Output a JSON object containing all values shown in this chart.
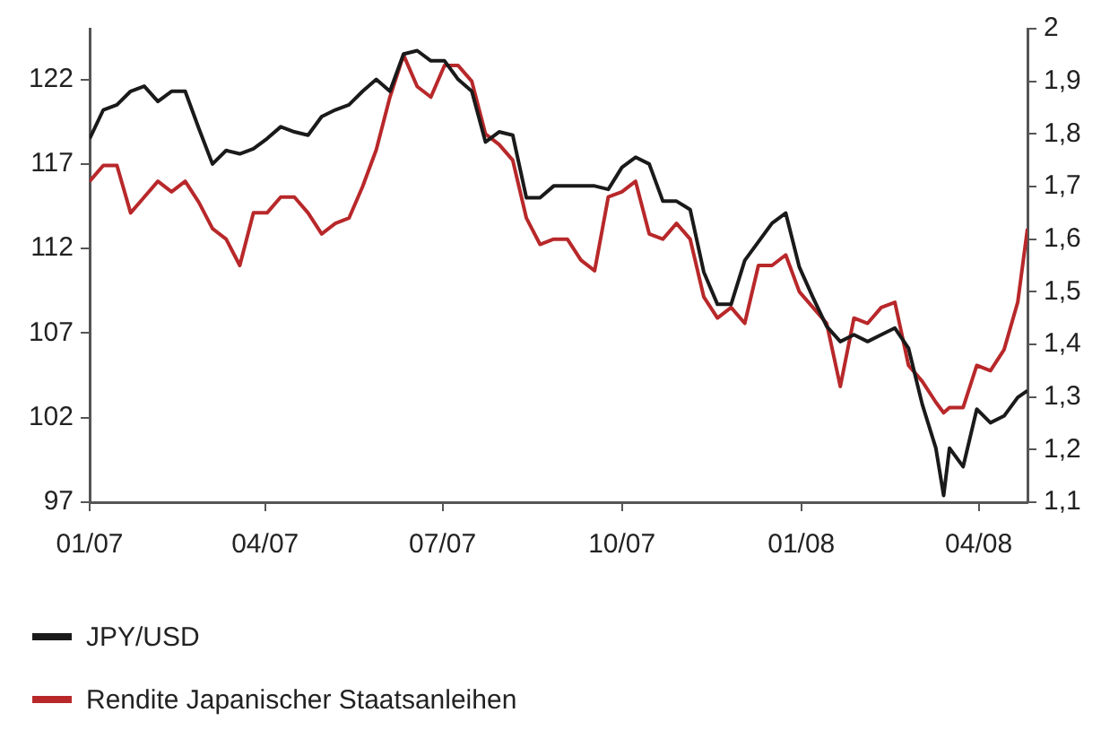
{
  "chart_data": {
    "type": "line",
    "legend": "bottom",
    "grid": false,
    "x": [
      "2007-01-01",
      "2007-01-08",
      "2007-01-15",
      "2007-01-22",
      "2007-01-29",
      "2007-02-05",
      "2007-02-12",
      "2007-02-19",
      "2007-02-26",
      "2007-03-05",
      "2007-03-12",
      "2007-03-19",
      "2007-03-26",
      "2007-04-02",
      "2007-04-09",
      "2007-04-16",
      "2007-04-23",
      "2007-04-30",
      "2007-05-07",
      "2007-05-14",
      "2007-05-21",
      "2007-05-28",
      "2007-06-04",
      "2007-06-11",
      "2007-06-18",
      "2007-06-25",
      "2007-07-02",
      "2007-07-09",
      "2007-07-16",
      "2007-07-23",
      "2007-07-30",
      "2007-08-06",
      "2007-08-13",
      "2007-08-20",
      "2007-08-27",
      "2007-09-03",
      "2007-09-10",
      "2007-09-17",
      "2007-09-24",
      "2007-10-01",
      "2007-10-08",
      "2007-10-15",
      "2007-10-22",
      "2007-10-29",
      "2007-11-05",
      "2007-11-12",
      "2007-11-19",
      "2007-11-26",
      "2007-12-03",
      "2007-12-10",
      "2007-12-17",
      "2007-12-24",
      "2007-12-31",
      "2008-01-07",
      "2008-01-14",
      "2008-01-21",
      "2008-01-28",
      "2008-02-04",
      "2008-02-11",
      "2008-02-18",
      "2008-02-25",
      "2008-03-03",
      "2008-03-10",
      "2008-03-14",
      "2008-03-17",
      "2008-03-24",
      "2008-03-31",
      "2008-04-07",
      "2008-04-14",
      "2008-04-21",
      "2008-04-26"
    ],
    "series": [
      {
        "name": "JPY/USD",
        "color": "#1a1a1a",
        "values": [
          118.5,
          120.2,
          120.5,
          121.3,
          121.6,
          120.7,
          121.3,
          121.3,
          119.1,
          117.0,
          117.8,
          117.6,
          117.9,
          118.5,
          119.2,
          118.9,
          118.7,
          119.8,
          120.2,
          120.5,
          121.3,
          122.0,
          121.3,
          123.5,
          123.7,
          123.1,
          123.1,
          122.0,
          121.3,
          118.3,
          118.9,
          118.7,
          115.0,
          115.0,
          115.7,
          115.7,
          115.7,
          115.7,
          115.5,
          116.8,
          117.4,
          117.0,
          114.8,
          114.8,
          114.3,
          110.6,
          108.7,
          108.7,
          111.3,
          112.4,
          113.5,
          114.1,
          110.9,
          109.1,
          107.4,
          106.5,
          106.9,
          106.5,
          106.9,
          107.3,
          106.1,
          102.8,
          100.2,
          97.4,
          100.2,
          99.1,
          102.5,
          101.7,
          102.1,
          103.2,
          103.6
        ]
      },
      {
        "name": "Rendite Japanischer Staatsanleihen",
        "color": "#b8282a",
        "axis": "y2",
        "values": [
          1.71,
          1.74,
          1.74,
          1.65,
          1.68,
          1.71,
          1.69,
          1.71,
          1.67,
          1.62,
          1.6,
          1.55,
          1.65,
          1.65,
          1.68,
          1.68,
          1.65,
          1.61,
          1.63,
          1.64,
          1.7,
          1.77,
          1.87,
          1.95,
          1.89,
          1.87,
          1.93,
          1.93,
          1.9,
          1.8,
          1.78,
          1.75,
          1.64,
          1.59,
          1.6,
          1.6,
          1.56,
          1.54,
          1.68,
          1.69,
          1.71,
          1.61,
          1.6,
          1.63,
          1.6,
          1.49,
          1.45,
          1.47,
          1.44,
          1.55,
          1.55,
          1.57,
          1.5,
          1.47,
          1.44,
          1.32,
          1.45,
          1.44,
          1.47,
          1.48,
          1.36,
          1.33,
          1.29,
          1.27,
          1.28,
          1.28,
          1.36,
          1.35,
          1.39,
          1.48,
          1.62
        ]
      }
    ],
    "xlim": [
      "2007-01-01",
      "2008-04-26"
    ],
    "xticks": [
      {
        "value": "2007-01-01",
        "label": "01/07"
      },
      {
        "value": "2007-04-01",
        "label": "04/07"
      },
      {
        "value": "2007-07-01",
        "label": "07/07"
      },
      {
        "value": "2007-10-01",
        "label": "10/07"
      },
      {
        "value": "2008-01-01",
        "label": "01/08"
      },
      {
        "value": "2008-04-01",
        "label": "04/08"
      }
    ],
    "ylim": [
      97,
      125
    ],
    "yticks": [
      97,
      102,
      107,
      112,
      117,
      122
    ],
    "y2lim": [
      1.1,
      2
    ],
    "y2ticks": [
      {
        "value": 1.1,
        "label": "1,1"
      },
      {
        "value": 1.2,
        "label": "1,2"
      },
      {
        "value": 1.3,
        "label": "1,3"
      },
      {
        "value": 1.4,
        "label": "1,4"
      },
      {
        "value": 1.5,
        "label": "1,5"
      },
      {
        "value": 1.6,
        "label": "1,6"
      },
      {
        "value": 1.7,
        "label": "1,7"
      },
      {
        "value": 1.8,
        "label": "1,8"
      },
      {
        "value": 1.9,
        "label": "1,9"
      },
      {
        "value": 2,
        "label": "2"
      }
    ]
  }
}
